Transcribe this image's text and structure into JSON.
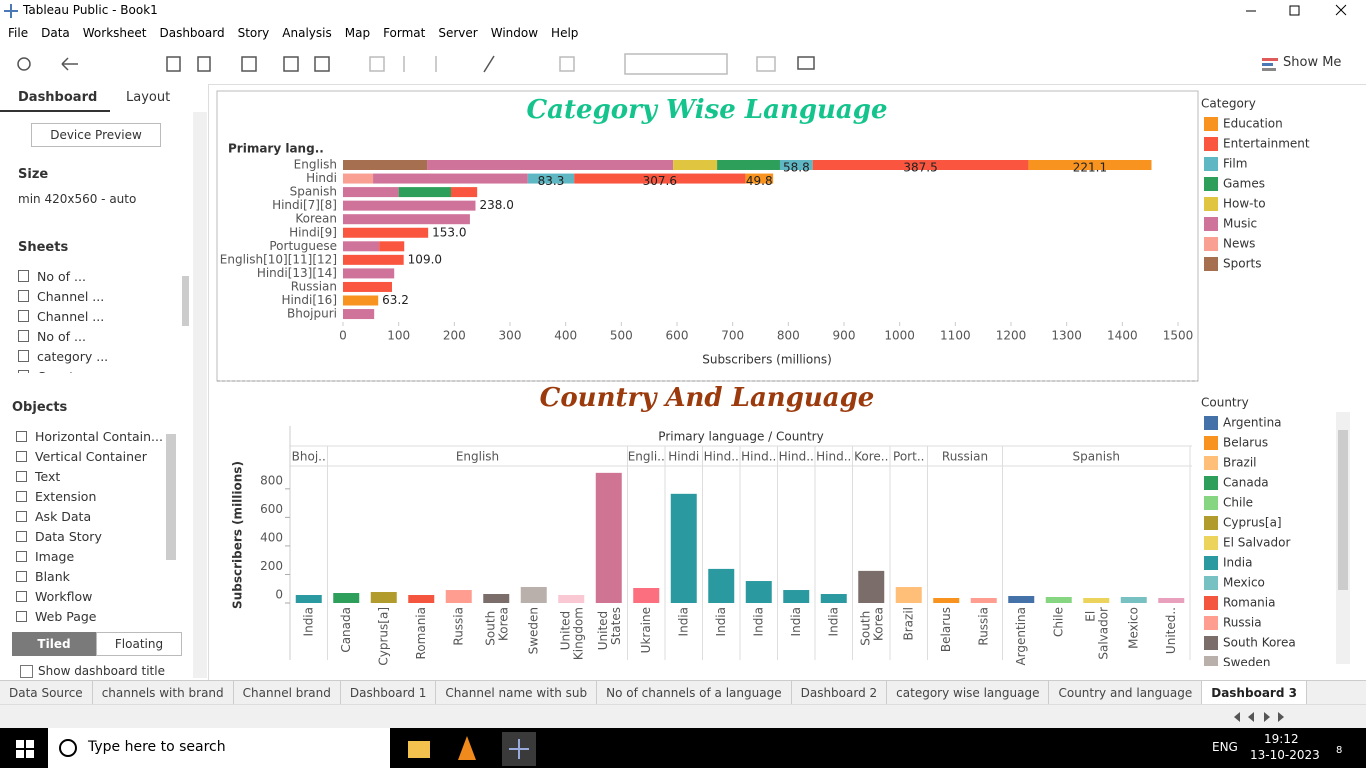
{
  "window": {
    "title": "Tableau Public - Book1"
  },
  "menu": [
    "File",
    "Data",
    "Worksheet",
    "Dashboard",
    "Story",
    "Analysis",
    "Map",
    "Format",
    "Server",
    "Window",
    "Help"
  ],
  "toolbar": {
    "show_me": "Show Me"
  },
  "side_panel": {
    "tabs": [
      "Dashboard",
      "Layout"
    ],
    "device_preview": "Device Preview",
    "size": {
      "heading": "Size",
      "value": "min 420x560 - auto"
    },
    "sheets": {
      "heading": "Sheets",
      "items": [
        "No of ...",
        "Channel ...",
        "Channel ...",
        "No of ...",
        "category ...",
        "Country an..."
      ]
    },
    "objects": {
      "heading": "Objects",
      "items": [
        "Horizontal Contain...",
        "Vertical Container",
        "Text",
        "Extension",
        "Ask Data",
        "Data Story",
        "Image",
        "Blank",
        "Workflow",
        "Web Page"
      ]
    },
    "layout_modes": [
      "Tiled",
      "Floating"
    ],
    "show_title": "Show dashboard title"
  },
  "chart_data": [
    {
      "type": "bar",
      "orientation": "horizontal",
      "stacked": true,
      "title": "Category Wise Language",
      "title_color": "#14c48c",
      "y_label": "Primary lang..",
      "x_label": "Subscribers (millions)",
      "legend_title": "Category",
      "categories": [
        "English",
        "Hindi",
        "Spanish",
        "Hindi[7][8]",
        "Korean",
        "Hindi[9]",
        "Portuguese",
        "English[10][11][12]",
        "Hindi[13][14]",
        "Russian",
        "Hindi[16]",
        "Bhojpuri"
      ],
      "series": [
        {
          "name": "Education",
          "color": "#f7931e",
          "values": [
            221.1,
            49.8,
            null,
            null,
            null,
            null,
            null,
            null,
            null,
            null,
            63.2,
            null
          ],
          "value_labels": [
            "221.1",
            "49.8",
            null,
            null,
            null,
            null,
            null,
            null,
            null,
            null,
            "63.2",
            null
          ]
        },
        {
          "name": "Entertainment",
          "color": "#f9553f",
          "values": [
            387.5,
            307.6,
            47,
            null,
            null,
            153,
            45,
            109,
            null,
            88,
            null,
            null
          ],
          "value_labels": [
            "387.5",
            "307.6",
            null,
            null,
            null,
            "153.0",
            null,
            "109.0",
            null,
            null,
            null,
            null
          ]
        },
        {
          "name": "Film",
          "color": "#5fb7c4",
          "values": [
            58.8,
            83.3,
            null,
            null,
            null,
            null,
            null,
            null,
            null,
            null,
            null,
            null
          ],
          "value_labels": [
            "58.8",
            "83.3",
            null,
            null,
            null,
            null,
            null,
            null,
            null,
            null,
            null,
            null
          ]
        },
        {
          "name": "Games",
          "color": "#2e9e5b",
          "values": [
            113,
            null,
            94,
            null,
            null,
            null,
            null,
            null,
            null,
            null,
            null,
            null
          ]
        },
        {
          "name": "How-to",
          "color": "#e0c540",
          "values": [
            79,
            null,
            null,
            null,
            null,
            null,
            null,
            null,
            null,
            null,
            null,
            null
          ]
        },
        {
          "name": "Music",
          "color": "#d0739a",
          "values": [
            442,
            278,
            100,
            238,
            228,
            null,
            65,
            null,
            92,
            null,
            null,
            56
          ],
          "value_labels": [
            null,
            null,
            null,
            "238.0",
            null,
            null,
            null,
            null,
            null,
            null,
            null,
            null
          ]
        },
        {
          "name": "News",
          "color": "#f9a093",
          "values": [
            null,
            54,
            null,
            null,
            null,
            null,
            null,
            null,
            null,
            null,
            null,
            null
          ]
        },
        {
          "name": "Sports",
          "color": "#a66f4f",
          "values": [
            151,
            null,
            null,
            null,
            null,
            null,
            null,
            null,
            null,
            null,
            null,
            null
          ]
        }
      ],
      "xlim": [
        0,
        1500
      ],
      "xticks": [
        0,
        100,
        200,
        300,
        400,
        500,
        600,
        700,
        800,
        900,
        1000,
        1100,
        1200,
        1300,
        1400,
        1500
      ]
    },
    {
      "type": "bar",
      "title": "Country And Language",
      "title_color": "#9b3a0c",
      "x_label": "Primary language / Country",
      "y_label": "Subscribers (millions)",
      "legend_title": "Country",
      "groups": [
        {
          "label": "Bhoj..",
          "categories": [
            "India"
          ],
          "values": [
            56
          ],
          "colors": [
            "#2b9aa0"
          ]
        },
        {
          "label": "English",
          "categories": [
            "Canada",
            "Cyprus[a]",
            "Romania",
            "Russia",
            "South Korea",
            "Sweden",
            "United Kingdom",
            "United States"
          ],
          "values": [
            70,
            77,
            56,
            91,
            63,
            112,
            56,
            912
          ],
          "colors": [
            "#2e9e5b",
            "#b29b2d",
            "#f4553f",
            "#ff9d91",
            "#7b6e6a",
            "#bab0ab",
            "#f9c8d3",
            "#cf7593"
          ]
        },
        {
          "label": "Engli..",
          "categories": [
            "Ukraine"
          ],
          "values": [
            105
          ],
          "colors": [
            "#fb6f7f"
          ]
        },
        {
          "label": "Hindi",
          "categories": [
            "India"
          ],
          "values": [
            765
          ],
          "colors": [
            "#2b9aa0"
          ]
        },
        {
          "label": "Hind..",
          "categories": [
            "India"
          ],
          "values": [
            239
          ],
          "colors": [
            "#2b9aa0"
          ]
        },
        {
          "label": "Hind..",
          "categories": [
            "India"
          ],
          "values": [
            154
          ],
          "colors": [
            "#2b9aa0"
          ]
        },
        {
          "label": "Hind..",
          "categories": [
            "India"
          ],
          "values": [
            91
          ],
          "colors": [
            "#2b9aa0"
          ]
        },
        {
          "label": "Hind..",
          "categories": [
            "India"
          ],
          "values": [
            63
          ],
          "colors": [
            "#2b9aa0"
          ]
        },
        {
          "label": "Kore..",
          "categories": [
            "South Korea"
          ],
          "values": [
            225
          ],
          "colors": [
            "#7b6e6a"
          ]
        },
        {
          "label": "Port..",
          "categories": [
            "Brazil"
          ],
          "values": [
            112
          ],
          "colors": [
            "#ffbf79"
          ]
        },
        {
          "label": "Russian",
          "categories": [
            "Belarus",
            "Russia"
          ],
          "values": [
            35,
            35
          ],
          "colors": [
            "#f7931e",
            "#ff9d91"
          ]
        },
        {
          "label": "Spanish",
          "categories": [
            "Argentina",
            "Chile",
            "El Salvador",
            "Mexico",
            "United.."
          ],
          "values": [
            49,
            42,
            35,
            42,
            35
          ],
          "colors": [
            "#4472a8",
            "#86d580",
            "#ecd35c",
            "#78c1c2",
            "#e8a0bc"
          ]
        }
      ],
      "legend": [
        {
          "name": "Argentina",
          "color": "#4472a8"
        },
        {
          "name": "Belarus",
          "color": "#f7931e"
        },
        {
          "name": "Brazil",
          "color": "#ffbf79"
        },
        {
          "name": "Canada",
          "color": "#2e9e5b"
        },
        {
          "name": "Chile",
          "color": "#86d580"
        },
        {
          "name": "Cyprus[a]",
          "color": "#b29b2d"
        },
        {
          "name": "El Salvador",
          "color": "#ecd35c"
        },
        {
          "name": "India",
          "color": "#2b9aa0"
        },
        {
          "name": "Mexico",
          "color": "#78c1c2"
        },
        {
          "name": "Romania",
          "color": "#f4553f"
        },
        {
          "name": "Russia",
          "color": "#ff9d91"
        },
        {
          "name": "South Korea",
          "color": "#7b6e6a"
        },
        {
          "name": "Sweden",
          "color": "#bab0ab"
        }
      ],
      "ylim": [
        0,
        960
      ],
      "yticks": [
        0,
        200,
        400,
        600,
        800
      ]
    }
  ],
  "sheet_tabs": [
    "Data Source",
    "channels with brand",
    "Channel brand",
    "Dashboard 1",
    "Channel name with sub",
    "No of channels of a language",
    "Dashboard 2",
    "category wise language",
    "Country and language",
    "Dashboard 3"
  ],
  "taskbar": {
    "search": "Type here to search",
    "language": "ENG",
    "time": "19:12",
    "date": "13-10-2023",
    "notifications": 8
  }
}
